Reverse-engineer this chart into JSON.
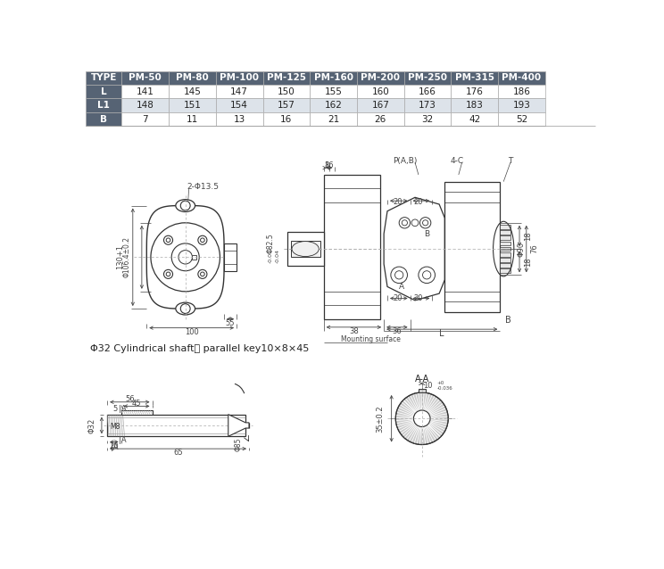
{
  "table_headers": [
    "TYPE",
    "PM-50",
    "PM-80",
    "PM-100",
    "PM-125",
    "PM-160",
    "PM-200",
    "PM-250",
    "PM-315",
    "PM-400"
  ],
  "table_rows": [
    [
      "L",
      "141",
      "145",
      "147",
      "150",
      "155",
      "160",
      "166",
      "176",
      "186"
    ],
    [
      "L1",
      "148",
      "151",
      "154",
      "157",
      "162",
      "167",
      "173",
      "183",
      "193"
    ],
    [
      "B",
      "7",
      "11",
      "13",
      "16",
      "21",
      "26",
      "32",
      "42",
      "52"
    ]
  ],
  "header_bg": "#566374",
  "header_fg": "#ffffff",
  "row0_bg": "#ffffff",
  "row1_bg": "#dde3ea",
  "row2_bg": "#ffffff",
  "bg_color": "#ffffff",
  "lc": "#333333",
  "dc": "#444444",
  "cc": "#666666"
}
